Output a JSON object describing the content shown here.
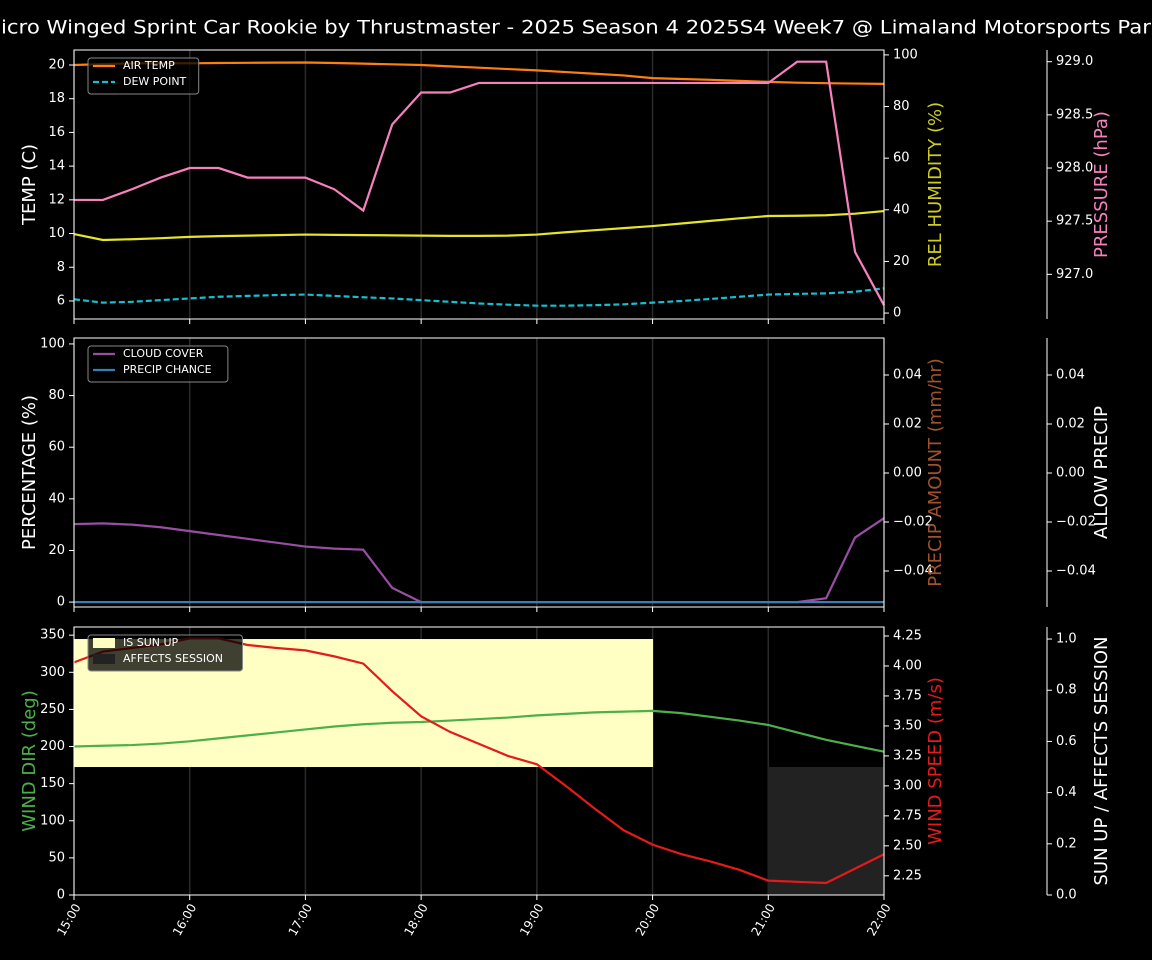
{
  "title": "icro Winged Sprint Car Rookie by Thrustmaster - 2025 Season 4 2025S4 Week7 @ Limaland Motorsports Par",
  "x": [
    15,
    15.25,
    15.5,
    15.75,
    16,
    16.25,
    16.5,
    16.75,
    17,
    17.25,
    17.5,
    17.75,
    18,
    18.25,
    18.5,
    18.75,
    19,
    19.25,
    19.5,
    19.75,
    20,
    20.25,
    20.5,
    20.75,
    21,
    21.25,
    21.5,
    21.75,
    22
  ],
  "xlim": [
    15,
    22
  ],
  "xticks": [
    {
      "value": 15,
      "label": "15:00"
    },
    {
      "value": 16,
      "label": "16:00"
    },
    {
      "value": 17,
      "label": "17:00"
    },
    {
      "value": 18,
      "label": "18:00"
    },
    {
      "value": 19,
      "label": "19:00"
    },
    {
      "value": 20,
      "label": "20:00"
    },
    {
      "value": 21,
      "label": "21:00"
    },
    {
      "value": 22,
      "label": "22:00"
    }
  ],
  "grid": true,
  "chart_data": [
    {
      "type": "line",
      "legend": "upper left",
      "ylabel": "TEMP (C)",
      "ylabel_color": "#ffffff",
      "ylim": [
        4.93,
        20.89
      ],
      "yticks": [
        6,
        8,
        10,
        12,
        14,
        16,
        18,
        20
      ],
      "y2label": "REL HUMIDITY (%)",
      "y2label_color": "#cccc22",
      "y2lim": [
        -2.3,
        101.9
      ],
      "y2ticks": [
        0,
        20,
        40,
        60,
        80,
        100
      ],
      "y3label": "PRESSURE (hPa)",
      "y3label_color": "#f781bf",
      "y3lim": [
        926.58,
        929.11
      ],
      "y3ticks": [
        {
          "value": 927,
          "label": "927.0"
        },
        {
          "value": 927.5,
          "label": "927.5"
        },
        {
          "value": 928,
          "label": "928.0"
        },
        {
          "value": 928.5,
          "label": "928.5"
        },
        {
          "value": 929,
          "label": "929.0"
        }
      ],
      "series": [
        {
          "name": "AIR TEMP",
          "color": "#ff7f0e",
          "axis": "y",
          "style": "solid",
          "values": [
            20.0,
            20.05,
            20.1,
            20.1,
            20.1,
            20.12,
            20.13,
            20.14,
            20.15,
            20.12,
            20.08,
            20.04,
            20.0,
            19.92,
            19.84,
            19.76,
            19.68,
            19.58,
            19.48,
            19.38,
            19.22,
            19.17,
            19.12,
            19.06,
            19.0,
            18.95,
            18.92,
            18.9,
            18.88
          ]
        },
        {
          "name": "DEW POINT",
          "color": "#17becf",
          "axis": "y",
          "style": "dashed",
          "values": [
            6.1,
            5.9,
            5.95,
            6.05,
            6.15,
            6.25,
            6.3,
            6.35,
            6.38,
            6.3,
            6.22,
            6.15,
            6.05,
            5.95,
            5.85,
            5.78,
            5.72,
            5.72,
            5.75,
            5.8,
            5.9,
            6.0,
            6.12,
            6.25,
            6.38,
            6.42,
            6.45,
            6.55,
            6.75
          ]
        },
        {
          "color": "#e5e52a",
          "axis": "y2",
          "style": "solid",
          "values": [
            30.6,
            28.3,
            28.6,
            29.0,
            29.5,
            29.8,
            30.0,
            30.2,
            30.4,
            30.3,
            30.2,
            30.1,
            30.0,
            29.9,
            29.9,
            30.0,
            30.4,
            31.3,
            32.1,
            32.9,
            33.7,
            34.7,
            35.7,
            36.7,
            37.6,
            37.7,
            37.9,
            38.5,
            39.5
          ]
        },
        {
          "color": "#f781bf",
          "axis": "y3",
          "style": "solid",
          "values": [
            927.7,
            927.7,
            927.8,
            927.91,
            928.0,
            928.0,
            927.91,
            927.91,
            927.91,
            927.8,
            927.6,
            928.41,
            928.71,
            928.71,
            928.8,
            928.8,
            928.8,
            928.8,
            928.8,
            928.8,
            928.8,
            928.8,
            928.8,
            928.8,
            928.8,
            929.0,
            929.0,
            927.21,
            926.71
          ]
        }
      ]
    },
    {
      "type": "line",
      "legend": "upper left",
      "ylabel": "PERCENTAGE (%)",
      "ylabel_color": "#ffffff",
      "ylim": [
        -1.9,
        102.3
      ],
      "yticks": [
        0,
        20,
        40,
        60,
        80,
        100
      ],
      "y2label": "PRECIP AMOUNT (mm/hr)",
      "y2label_color": "#a0522d",
      "y2lim": [
        -0.0547,
        0.0551
      ],
      "y2ticks": [
        {
          "value": -0.04,
          "label": "−0.04"
        },
        {
          "value": -0.02,
          "label": "−0.02"
        },
        {
          "value": 0,
          "label": "0.00"
        },
        {
          "value": 0.02,
          "label": "0.02"
        },
        {
          "value": 0.04,
          "label": "0.04"
        }
      ],
      "y3label": "ALLOW PRECIP",
      "y3label_color": "#ffffff",
      "y3lim": [
        -0.0547,
        0.0551
      ],
      "y3ticks": [
        {
          "value": -0.04,
          "label": "−0.04"
        },
        {
          "value": -0.02,
          "label": "−0.02"
        },
        {
          "value": 0,
          "label": "0.00"
        },
        {
          "value": 0.02,
          "label": "0.02"
        },
        {
          "value": 0.04,
          "label": "0.04"
        }
      ],
      "series": [
        {
          "name": "CLOUD COVER",
          "color": "#984ea3",
          "axis": "y",
          "style": "solid",
          "values": [
            30.2,
            30.5,
            30.0,
            29.0,
            27.5,
            26.0,
            24.5,
            23.0,
            21.5,
            20.7,
            20.3,
            5.5,
            0,
            0,
            0,
            0,
            0,
            0,
            0,
            0,
            0,
            0,
            0,
            0,
            0,
            0,
            1.5,
            25,
            32.5
          ]
        },
        {
          "name": "PRECIP CHANCE",
          "color": "#377eb8",
          "axis": "y",
          "style": "solid",
          "values": [
            0,
            0,
            0,
            0,
            0,
            0,
            0,
            0,
            0,
            0,
            0,
            0,
            0,
            0,
            0,
            0,
            0,
            0,
            0,
            0,
            0,
            0,
            0,
            0,
            0,
            0,
            0,
            0,
            0
          ]
        }
      ]
    },
    {
      "type": "line",
      "legend": "upper left",
      "ylabel": "WIND DIR (deg)",
      "ylabel_color": "#4daf4a",
      "ylim": [
        0,
        361
      ],
      "yticks": [
        0,
        50,
        100,
        150,
        200,
        250,
        300,
        350
      ],
      "y2label": "WIND SPEED (m/s)",
      "y2label_color": "#e41a1c",
      "y2lim": [
        2.09,
        4.325
      ],
      "y2ticks": [
        {
          "value": 2.25,
          "label": "2.25"
        },
        {
          "value": 2.5,
          "label": "2.50"
        },
        {
          "value": 2.75,
          "label": "2.75"
        },
        {
          "value": 3,
          "label": "3.00"
        },
        {
          "value": 3.25,
          "label": "3.25"
        },
        {
          "value": 3.5,
          "label": "3.50"
        },
        {
          "value": 3.75,
          "label": "3.75"
        },
        {
          "value": 4,
          "label": "4.00"
        },
        {
          "value": 4.25,
          "label": "4.25"
        }
      ],
      "y3label": "SUN UP / AFFECTS SESSION",
      "y3label_color": "#ffffff",
      "y3lim": [
        0,
        1.047
      ],
      "y3ticks": [
        {
          "value": 0,
          "label": "0.0"
        },
        {
          "value": 0.2,
          "label": "0.2"
        },
        {
          "value": 0.4,
          "label": "0.4"
        },
        {
          "value": 0.6,
          "label": "0.6"
        },
        {
          "value": 0.8,
          "label": "0.8"
        },
        {
          "value": 1,
          "label": "1.0"
        }
      ],
      "series": [
        {
          "name": "IS SUN UP",
          "color": "#ffffc4",
          "axis": "y3",
          "style": "band",
          "band": [
            0.5,
            1
          ],
          "values": [
            1,
            1,
            1,
            1,
            1,
            1,
            1,
            1,
            1,
            1,
            1,
            1,
            1,
            1,
            1,
            1,
            1,
            1,
            1,
            1,
            1,
            0,
            0,
            0,
            0,
            0,
            0,
            0,
            0
          ]
        },
        {
          "name": "AFFECTS SESSION",
          "color": "#222222",
          "axis": "y3",
          "style": "band",
          "band": [
            0,
            0.5
          ],
          "values": [
            0,
            0,
            0,
            0,
            0,
            0,
            0,
            0,
            0,
            0,
            0,
            0,
            0,
            0,
            0,
            0,
            0,
            0,
            0,
            0,
            0,
            0,
            0,
            0,
            1,
            1,
            1,
            1,
            1
          ]
        },
        {
          "color": "#4daf4a",
          "axis": "y",
          "style": "solid",
          "values": [
            200,
            201,
            202,
            204,
            207,
            211,
            215,
            219,
            223,
            227,
            230,
            232,
            233,
            235,
            237,
            239,
            242,
            244,
            246,
            247,
            248,
            245,
            240,
            235,
            229,
            219,
            209,
            201,
            193
          ]
        },
        {
          "color": "#e41a1c",
          "axis": "y2",
          "style": "solid",
          "values": [
            4.03,
            4.12,
            4.15,
            4.18,
            4.23,
            4.23,
            4.175,
            4.15,
            4.13,
            4.08,
            4.02,
            3.79,
            3.58,
            3.45,
            3.35,
            3.25,
            3.18,
            3.0,
            2.81,
            2.63,
            2.51,
            2.43,
            2.37,
            2.3,
            2.21,
            2.2,
            2.19,
            2.31,
            2.43
          ]
        }
      ]
    }
  ]
}
